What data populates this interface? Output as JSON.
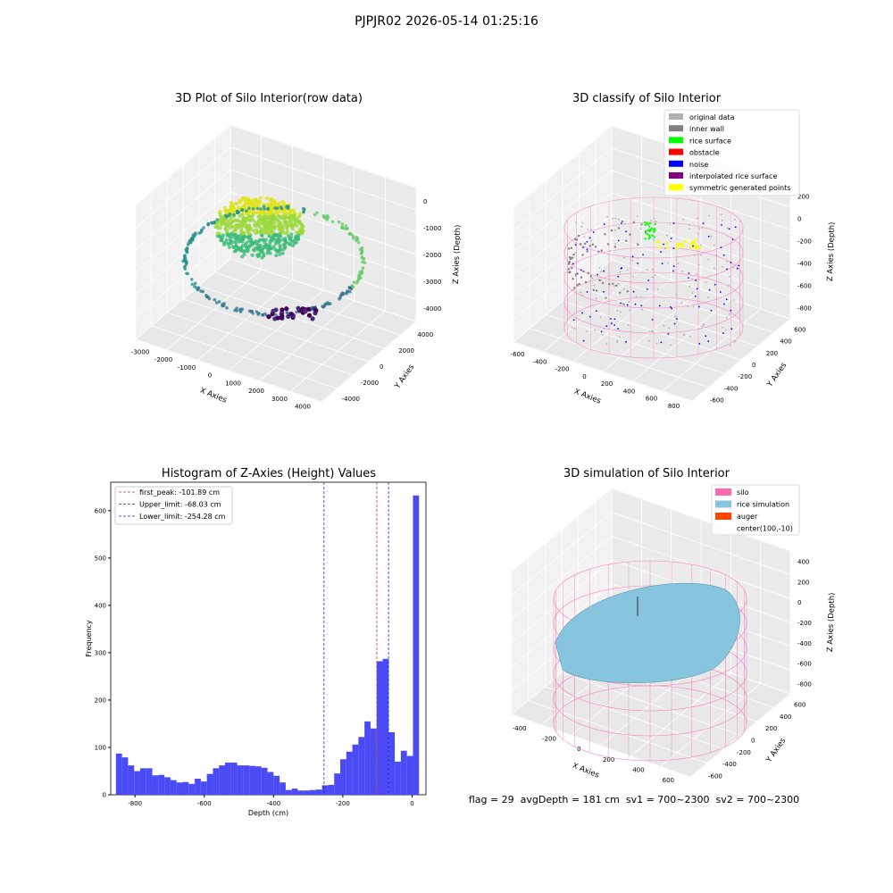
{
  "suptitle": "PJPJR02 2026-05-14 01:25:16",
  "footer": "flag = 29  avgDepth = 181 cm  sv1 = 700~2300  sv2 = 700~2300",
  "colors": {
    "hist_bar": "#4b4bf5",
    "first_peak": "#e0301e",
    "limit_lines": "#2222dd",
    "silo": "#ff69b4",
    "rice": "#87c4dd",
    "auger": "#ff4500",
    "original": "#b0b0b0",
    "inner_wall": "#808080",
    "rice_surface": "#00ff00",
    "obstacle": "#ff0000",
    "noise": "#0000ff",
    "interpolated": "#800080",
    "symmetric": "#ffff00"
  },
  "plot_tl": {
    "title": "3D Plot of Silo Interior(row data)",
    "xlabel": "X Axies",
    "ylabel": "Y Axies",
    "zlabel": "Z Axies (Depth)",
    "xticks": [
      "-3000",
      "-2000",
      "-1000",
      "0",
      "1000",
      "2000",
      "3000",
      "4000"
    ],
    "yticks": [
      "-4000",
      "-2000",
      "0",
      "2000",
      "4000"
    ],
    "zticks": [
      "0",
      "-1000",
      "-2000",
      "-3000",
      "-4000"
    ]
  },
  "plot_tr": {
    "title": "3D classify of Silo Interior",
    "xlabel": "X Axies",
    "ylabel": "Y Axies",
    "zlabel": "Z Axies (Depth)",
    "xticks": [
      "-600",
      "-400",
      "-200",
      "0",
      "200",
      "400",
      "600",
      "800"
    ],
    "yticks": [
      "-600",
      "-400",
      "-200",
      "0",
      "200",
      "400",
      "600"
    ],
    "zticks": [
      "200",
      "0",
      "-200",
      "-400",
      "-600",
      "-800"
    ],
    "legend": [
      "original data",
      "inner wall",
      "rice surface",
      "obstacle",
      "noise",
      "interpolated rice surface",
      "symmetric generated points"
    ]
  },
  "plot_br": {
    "title": "3D simulation of Silo Interior",
    "xlabel": "X Axies",
    "ylabel": "Y Axies",
    "zlabel": "Z Axies (Depth)",
    "xticks": [
      "-400",
      "-200",
      "0",
      "200",
      "400",
      "600"
    ],
    "yticks": [
      "-600",
      "-400",
      "-200",
      "0",
      "200",
      "400",
      "600"
    ],
    "zticks": [
      "400",
      "200",
      "0",
      "-200",
      "-400",
      "-600",
      "-800"
    ],
    "legend": [
      "silo",
      "rice simulation",
      "auger",
      "center(100,-10)"
    ]
  },
  "chart_data": {
    "type": "bar",
    "title": "Histogram of Z-Axies (Height) Values",
    "xlabel": "Depth (cm)",
    "ylabel": "Frequency",
    "xlim": [
      -870,
      40
    ],
    "ylim": [
      0,
      660
    ],
    "xticks": [
      -800,
      -600,
      -400,
      -200,
      0
    ],
    "yticks": [
      0,
      100,
      200,
      300,
      400,
      500,
      600
    ],
    "bin_width": 17.5,
    "bin_start": -855,
    "values": [
      87,
      79,
      62,
      50,
      56,
      56,
      41,
      42,
      37,
      31,
      26,
      27,
      23,
      34,
      28,
      44,
      56,
      62,
      68,
      68,
      62,
      62,
      61,
      60,
      57,
      48,
      40,
      26,
      10,
      13,
      9,
      9,
      10,
      11,
      20,
      21,
      45,
      75,
      91,
      106,
      122,
      155,
      140,
      282,
      287,
      132,
      70,
      93,
      82,
      632
    ],
    "vlines": [
      {
        "label": "first_peak: -101.89 cm",
        "x": -101.89,
        "color": "#e0301e"
      },
      {
        "label": "Upper_limit: -68.03 cm",
        "x": -68.03,
        "color": "#2222dd"
      },
      {
        "label": "Lower_limit: -254.28 cm",
        "x": -254.28,
        "color": "#2222dd"
      }
    ],
    "legend_position": "upper-left"
  }
}
